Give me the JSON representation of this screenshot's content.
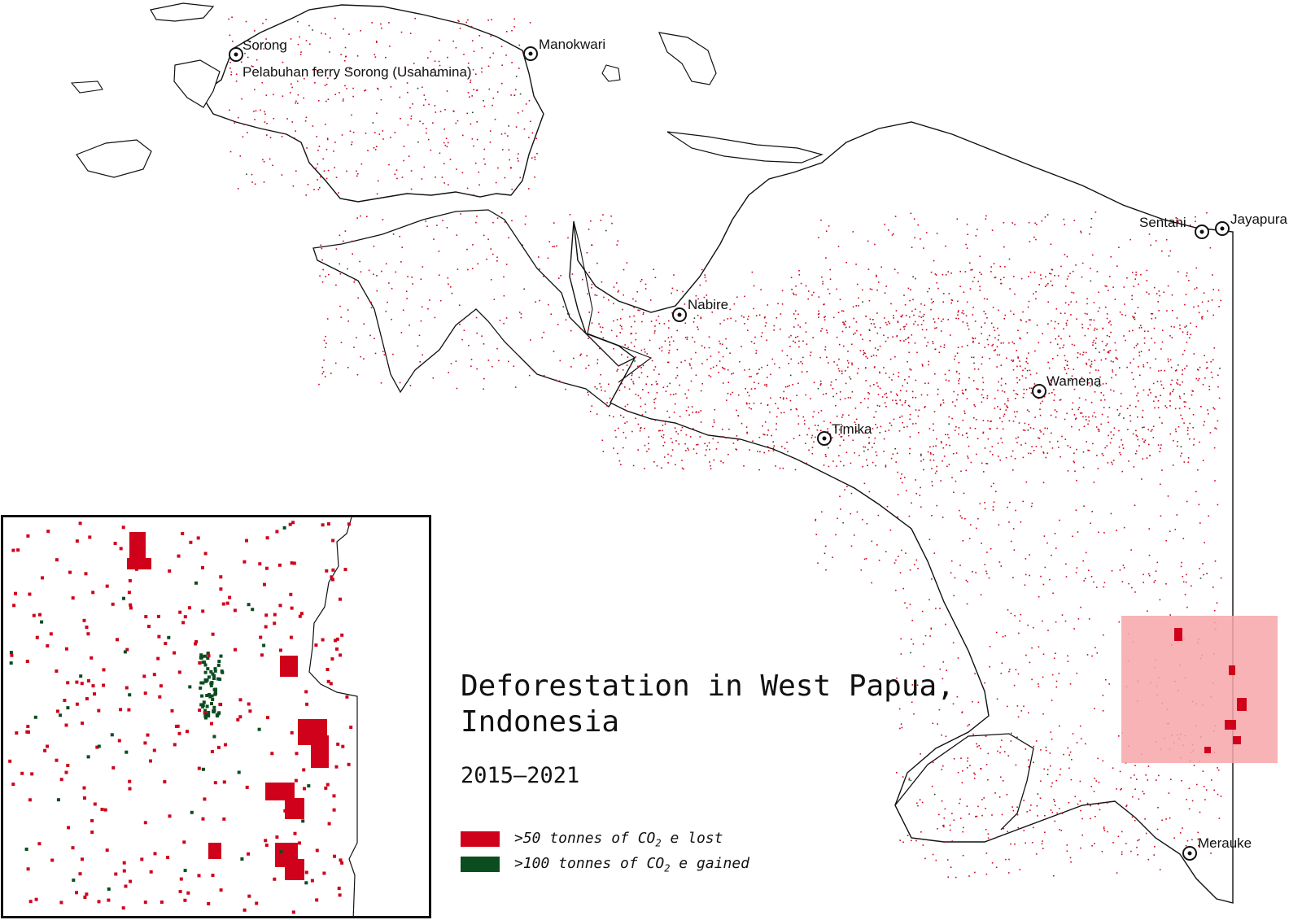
{
  "title_line1": "Deforestation in West Papua,",
  "title_line2": "Indonesia",
  "subtitle": "2015–2021",
  "legend": [
    {
      "pre": ">50 tonnes of CO",
      "sub": "2",
      "post": " e lost",
      "color": "#d0021b"
    },
    {
      "pre": ">100 tonnes of CO",
      "sub": "2",
      "post": " e gained",
      "color": "#0b4d1f"
    }
  ],
  "cities": [
    {
      "name": "Sorong"
    },
    {
      "name": "Pelabuhan ferry Sorong (Usahamina)"
    },
    {
      "name": "Manokwari"
    },
    {
      "name": "Nabire"
    },
    {
      "name": "Timika"
    },
    {
      "name": "Wamena"
    },
    {
      "name": "Sentani"
    },
    {
      "name": "Jayapura"
    },
    {
      "name": "Merauke"
    }
  ],
  "colors": {
    "loss": "#d0021b",
    "gain": "#0b4d1f",
    "highlight": "#f7a6a9"
  }
}
